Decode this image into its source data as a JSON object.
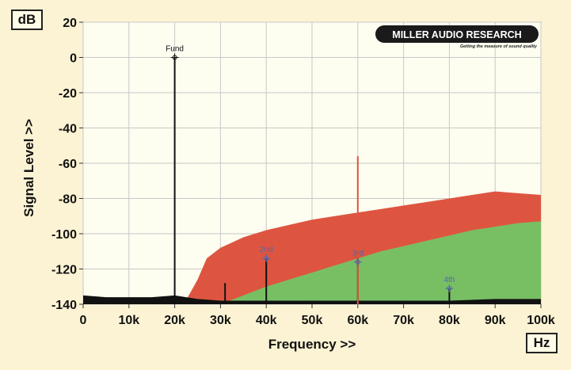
{
  "chart_data": {
    "type": "area",
    "ylabel": "Signal Level >>",
    "xlabel": "Frequency >>",
    "y_unit": "dB",
    "x_unit": "Hz",
    "logo": {
      "text": "MILLER AUDIO RESEARCH",
      "tagline": "Getting the measure of sound quality"
    },
    "xlim": [
      0,
      100000
    ],
    "ylim": [
      -140,
      20
    ],
    "grid": true,
    "x_ticks": [
      0,
      10000,
      20000,
      30000,
      40000,
      50000,
      60000,
      70000,
      80000,
      90000,
      100000
    ],
    "x_tick_labels": [
      "0",
      "10k",
      "20k",
      "30k",
      "40k",
      "50k",
      "60k",
      "70k",
      "80k",
      "90k",
      "100k"
    ],
    "y_ticks": [
      20,
      0,
      -20,
      -40,
      -60,
      -80,
      -100,
      -120,
      -140
    ],
    "y_tick_labels": [
      "20",
      "0",
      "-20",
      "-40",
      "-60",
      "-80",
      "-100",
      "-120",
      "-140"
    ],
    "colors": {
      "background": "#fbf3d3",
      "plot_bg": "#fdfdf0",
      "grid": "#c8c8c8",
      "red_series": "#dd5540",
      "green_series": "#78bf64",
      "black_series": "#111111",
      "marker": "#5566aa"
    },
    "series": [
      {
        "color": "red",
        "x": [
          22000,
          25000,
          27000,
          30000,
          35000,
          40000,
          45000,
          50000,
          55000,
          60000,
          65000,
          70000,
          75000,
          80000,
          85000,
          90000,
          95000,
          100000
        ],
        "y": [
          -140,
          -126,
          -114,
          -108,
          -102,
          -98,
          -95,
          -92,
          -90,
          -88,
          -86,
          -84,
          -82,
          -80,
          -78,
          -76,
          -77,
          -78
        ]
      },
      {
        "color": "green",
        "x": [
          30000,
          35000,
          40000,
          45000,
          50000,
          55000,
          60000,
          65000,
          70000,
          75000,
          80000,
          85000,
          90000,
          95000,
          100000
        ],
        "y": [
          -140,
          -135,
          -130,
          -126,
          -122,
          -118,
          -114,
          -110,
          -107,
          -104,
          -101,
          -98,
          -96,
          -94,
          -93
        ]
      },
      {
        "color": "black",
        "x": [
          0,
          5000,
          10000,
          15000,
          20000,
          25000,
          30000,
          40000,
          50000,
          60000,
          70000,
          80000,
          90000,
          100000
        ],
        "y": [
          -135,
          -136,
          -136,
          -136,
          -135,
          -137,
          -138,
          -138,
          -138,
          -138,
          -138,
          -138,
          -137,
          -137
        ]
      }
    ],
    "spikes": [
      {
        "x": 20000,
        "y": 0
      },
      {
        "x": 31000,
        "y": -128
      },
      {
        "x": 40000,
        "y": -114
      },
      {
        "x": 60000,
        "y": -113
      },
      {
        "x": 60000,
        "y": -56
      },
      {
        "x": 80000,
        "y": -131
      }
    ],
    "annotations": [
      {
        "label": "Fund",
        "x": 20000,
        "y": 0
      },
      {
        "label": "2nd",
        "x": 40000,
        "y": -114
      },
      {
        "label": "3rd",
        "x": 60000,
        "y": -116
      },
      {
        "label": "4th",
        "x": 80000,
        "y": -131
      }
    ]
  }
}
